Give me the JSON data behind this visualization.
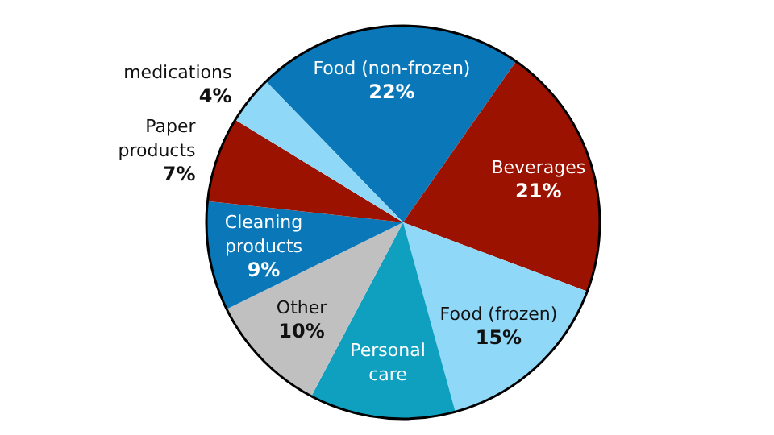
{
  "chart_data": {
    "type": "pie",
    "categories": [
      "Food (non-frozen)",
      "Beverages",
      "Food (frozen)",
      "Personal care",
      "Other",
      "Cleaning products",
      "Paper products",
      "medications"
    ],
    "values": [
      22,
      21,
      15,
      12,
      10,
      9,
      7,
      4
    ],
    "colors": [
      "#0a78b8",
      "#9b1200",
      "#8fd8f8",
      "#0fa0c0",
      "#c0c0c0",
      "#0a78b8",
      "#9b1200",
      "#8fd8f8"
    ],
    "value_labels": [
      "22%",
      "21%",
      "15%",
      null,
      "10%",
      "9%",
      "7%",
      "4%"
    ]
  }
}
